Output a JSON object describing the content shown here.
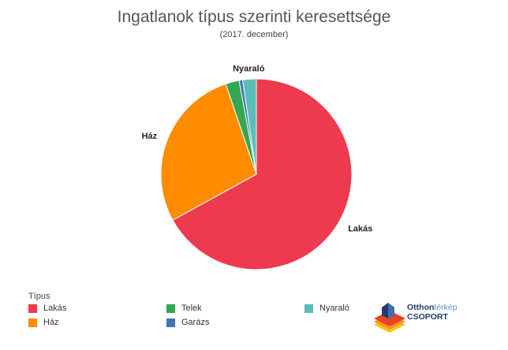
{
  "chart_data": {
    "type": "pie",
    "title": "Ingatlanok típus szerinti keresettsége",
    "subtitle": "(2017. december)",
    "legend_title": "Típus",
    "legend_placement": "bottom-left",
    "categories": [
      "Lakás",
      "Ház",
      "Telek",
      "Garázs",
      "Nyaraló"
    ],
    "values": [
      67.0,
      27.8,
      2.3,
      0.6,
      2.3
    ],
    "colors": [
      "#ee3a4e",
      "#ff8c00",
      "#33a853",
      "#4573b4",
      "#5bbdb8"
    ],
    "labels_shown": [
      "Lakás",
      "Ház",
      "Nyaraló"
    ]
  },
  "logo": {
    "line1a": "Otthon",
    "line1b": "térkép",
    "line2": "CSOPORT"
  }
}
